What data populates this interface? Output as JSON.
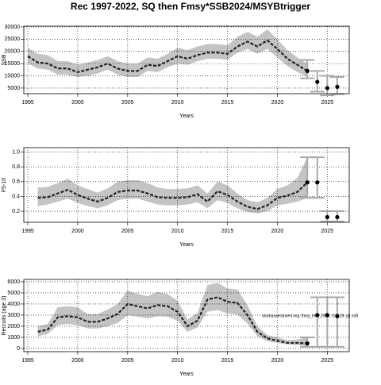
{
  "chart_data": [
    {
      "type": "band-line",
      "title": "Rec 1997-2022, SQ then Fmsy*SSB2024/MSYBtrigger",
      "xlabel": "Years",
      "ylabel": "SSB",
      "x": [
        1995,
        1996,
        1997,
        1998,
        1999,
        2000,
        2001,
        2002,
        2003,
        2004,
        2005,
        2006,
        2007,
        2008,
        2009,
        2010,
        2011,
        2012,
        2013,
        2014,
        2015,
        2016,
        2017,
        2018,
        2019,
        2020,
        2021,
        2022,
        2023
      ],
      "values": [
        18000,
        15500,
        15000,
        13000,
        13000,
        11500,
        12500,
        13500,
        15000,
        13000,
        12000,
        12000,
        14500,
        14000,
        16000,
        18000,
        17000,
        18500,
        19500,
        19500,
        19000,
        22000,
        24000,
        22000,
        24500,
        21000,
        17000,
        14500,
        12000
      ],
      "upper": [
        21500,
        19000,
        18500,
        16000,
        16000,
        14500,
        15500,
        16500,
        18000,
        16000,
        15000,
        15000,
        17500,
        17000,
        19000,
        21500,
        20500,
        22000,
        23000,
        23000,
        22500,
        26000,
        28000,
        26000,
        29000,
        25000,
        20500,
        17500,
        15000
      ],
      "lower": [
        15000,
        13000,
        12500,
        10500,
        10500,
        9500,
        10000,
        11000,
        12500,
        10500,
        9500,
        9500,
        12000,
        11500,
        13500,
        15000,
        14500,
        16000,
        17000,
        17000,
        16500,
        19500,
        21000,
        19000,
        21000,
        17500,
        14000,
        11500,
        9500
      ],
      "points": {
        "x": [
          2023,
          2024,
          2025,
          2026
        ],
        "values": [
          12000,
          7500,
          5000,
          5500
        ],
        "upper": [
          16500,
          12000,
          10000,
          9500
        ],
        "lower": [
          9000,
          3500,
          2000,
          2500
        ]
      },
      "line_color": "#222222",
      "band_color": "#c4c4c4",
      "error_color": "#a8a8a8",
      "xlim": [
        1994.6,
        2027.2
      ],
      "xticks": [
        1995,
        2000,
        2005,
        2010,
        2015,
        2020,
        2025
      ],
      "ylim": [
        2700,
        30300
      ],
      "yticks": [
        5000,
        10000,
        15000,
        20000,
        25000,
        30000
      ],
      "grid": true
    },
    {
      "type": "band-line",
      "xlabel": "Years",
      "ylabel": "F5-10",
      "x": [
        1996,
        1997,
        1998,
        1999,
        2000,
        2001,
        2002,
        2003,
        2004,
        2005,
        2006,
        2007,
        2008,
        2009,
        2010,
        2011,
        2012,
        2013,
        2014,
        2015,
        2016,
        2017,
        2018,
        2019,
        2020,
        2021,
        2022,
        2023
      ],
      "values": [
        0.38,
        0.39,
        0.44,
        0.49,
        0.42,
        0.37,
        0.33,
        0.38,
        0.46,
        0.48,
        0.48,
        0.44,
        0.39,
        0.38,
        0.38,
        0.39,
        0.43,
        0.33,
        0.47,
        0.42,
        0.33,
        0.26,
        0.23,
        0.28,
        0.38,
        0.41,
        0.46,
        0.59
      ],
      "upper": [
        0.52,
        0.53,
        0.58,
        0.64,
        0.55,
        0.5,
        0.45,
        0.51,
        0.6,
        0.62,
        0.62,
        0.58,
        0.52,
        0.5,
        0.5,
        0.51,
        0.55,
        0.44,
        0.6,
        0.55,
        0.44,
        0.35,
        0.32,
        0.38,
        0.5,
        0.55,
        0.65,
        0.93
      ],
      "lower": [
        0.27,
        0.29,
        0.33,
        0.37,
        0.31,
        0.27,
        0.24,
        0.28,
        0.35,
        0.37,
        0.37,
        0.33,
        0.29,
        0.28,
        0.28,
        0.29,
        0.32,
        0.24,
        0.35,
        0.31,
        0.24,
        0.19,
        0.17,
        0.2,
        0.28,
        0.3,
        0.33,
        0.38
      ],
      "points": {
        "x": [
          2023,
          2024,
          2025,
          2026
        ],
        "values": [
          0.59,
          0.59,
          0.12,
          0.12
        ],
        "upper": [
          0.93,
          0.93,
          0.2,
          0.2
        ],
        "lower": [
          0.38,
          0.38,
          0.06,
          0.06
        ]
      },
      "line_color": "#222222",
      "band_color": "#c4c4c4",
      "error_color": "#a8a8a8",
      "xlim": [
        1994.6,
        2027.2
      ],
      "xticks": [
        1995,
        2000,
        2005,
        2010,
        2015,
        2020,
        2025
      ],
      "ylim": [
        0.05,
        1.06
      ],
      "yticks": [
        0.2,
        0.4,
        0.6,
        0.8,
        {
          "value": 1,
          "label": "1.0"
        }
      ],
      "grid": true
    },
    {
      "type": "band-line",
      "xlabel": "Years",
      "ylabel": "Recruits (age 3)",
      "annotation": "stockassessment.org, fmsy_bsb_2024, r18129, git e38",
      "x": [
        1996,
        1997,
        1998,
        1999,
        2000,
        2001,
        2002,
        2003,
        2004,
        2005,
        2006,
        2007,
        2008,
        2009,
        2010,
        2011,
        2012,
        2013,
        2014,
        2015,
        2016,
        2017,
        2018,
        2019,
        2020,
        2021,
        2022,
        2023
      ],
      "values": [
        1500,
        1700,
        2800,
        2900,
        2800,
        2400,
        2400,
        2700,
        3100,
        4000,
        3800,
        3600,
        3900,
        3800,
        3300,
        2000,
        2500,
        4400,
        4600,
        4200,
        4100,
        3000,
        1500,
        900,
        700,
        500,
        500,
        450
      ],
      "upper": [
        2000,
        2200,
        3700,
        3800,
        3700,
        3100,
        3100,
        3500,
        4000,
        5200,
        4900,
        4700,
        5100,
        4900,
        4300,
        2600,
        3200,
        5700,
        5900,
        5400,
        5300,
        3900,
        2000,
        1200,
        1000,
        750,
        800,
        1000
      ],
      "lower": [
        1100,
        1300,
        2100,
        2200,
        2100,
        1800,
        1800,
        2000,
        2300,
        3000,
        2850,
        2700,
        2900,
        2850,
        2500,
        1500,
        1900,
        3300,
        3450,
        3150,
        3050,
        2250,
        1100,
        650,
        500,
        350,
        300,
        200
      ],
      "points": {
        "x": [
          2023,
          2024,
          2025,
          2026
        ],
        "values": [
          450,
          3000,
          3000,
          2900
        ],
        "upper": [
          1000,
          4600,
          4600,
          4600
        ],
        "lower": [
          150,
          150,
          150,
          150
        ]
      },
      "line_color": "#222222",
      "band_color": "#c4c4c4",
      "error_color": "#a8a8a8",
      "xlim": [
        1994.6,
        2027.2
      ],
      "xticks": [
        1995,
        2000,
        2005,
        2010,
        2015,
        2020,
        2025
      ],
      "ylim": [
        -290,
        6210
      ],
      "yticks": [
        0,
        1000,
        2000,
        3000,
        4000,
        5000,
        6000
      ],
      "grid": true
    }
  ]
}
